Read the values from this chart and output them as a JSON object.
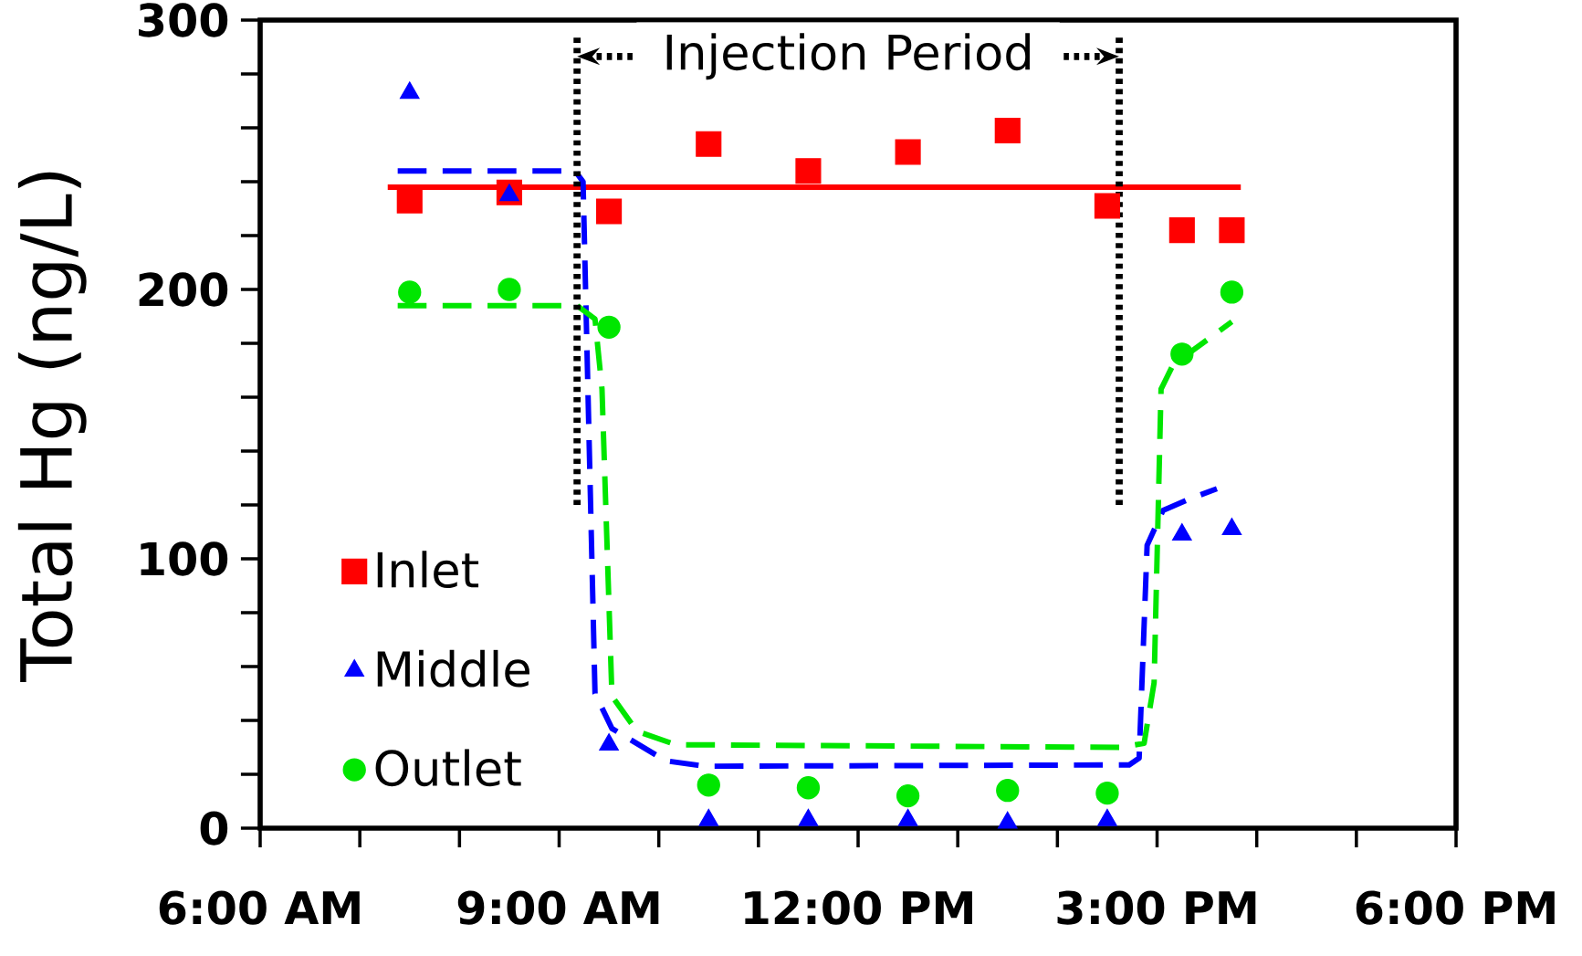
{
  "chart_data": {
    "type": "scatter",
    "ylabel": "Total Hg (ng/L)",
    "xlim": [
      6,
      18
    ],
    "ylim": [
      0,
      300
    ],
    "xticks": [
      {
        "value": 6,
        "label": "6:00 AM"
      },
      {
        "value": 9,
        "label": "9:00 AM"
      },
      {
        "value": 12,
        "label": "12:00 PM"
      },
      {
        "value": 15,
        "label": "3:00 PM"
      },
      {
        "value": 18,
        "label": "6:00 PM"
      }
    ],
    "yticks": [
      0,
      100,
      200,
      300
    ],
    "legend": "bottom left",
    "ref_lines": [
      {
        "axis": "x",
        "value": 9.18,
        "line_style": "dotted",
        "color": "#000000"
      },
      {
        "axis": "x",
        "value": 14.62,
        "line_style": "dotted",
        "color": "#000000"
      }
    ],
    "annotations": [
      "Injection Period"
    ],
    "series": [
      {
        "type": "line",
        "color": "#ff0000",
        "line_style": "solid",
        "marker": "none",
        "x": [
          7.28,
          15.84
        ],
        "values": [
          238,
          238
        ]
      },
      {
        "type": "line",
        "color": "#0000ff",
        "line_style": "dashed",
        "marker": "none",
        "x": [
          7.38,
          9.16,
          9.24,
          9.36,
          9.53,
          10.07,
          10.47,
          14.72,
          14.82,
          14.9,
          15.06,
          15.31,
          15.6
        ],
        "values": [
          244,
          244,
          240,
          50,
          37,
          25,
          23,
          23.5,
          26,
          105,
          118,
          122,
          126
        ]
      },
      {
        "type": "line",
        "color": "#00e600",
        "line_style": "dashed",
        "marker": "none",
        "x": [
          7.38,
          9.18,
          9.36,
          9.43,
          9.53,
          9.78,
          10.17,
          14.62,
          14.87,
          14.97,
          15.04,
          15.16,
          15.75
        ],
        "values": [
          194,
          194,
          189,
          163,
          49,
          36,
          31,
          30,
          31.5,
          54,
          163,
          172,
          188
        ]
      },
      {
        "name": "Inlet",
        "color": "#ff0000",
        "marker": "square",
        "x": [
          7.5,
          8.5,
          9.5,
          10.5,
          11.5,
          12.5,
          13.5,
          14.5,
          15.25,
          15.75
        ],
        "values": [
          233,
          236,
          229,
          254,
          244,
          251,
          259,
          231,
          222,
          222
        ]
      },
      {
        "name": "Middle",
        "color": "#0000ff",
        "marker": "triangle",
        "x": [
          7.5,
          8.5,
          9.5,
          10.5,
          11.5,
          12.5,
          13.5,
          14.5,
          15.25,
          15.75
        ],
        "values": [
          273,
          235,
          31,
          3,
          3,
          3,
          2,
          3,
          109,
          111
        ]
      },
      {
        "name": "Outlet",
        "color": "#00e600",
        "marker": "circle",
        "x": [
          7.5,
          8.5,
          9.5,
          10.5,
          11.5,
          12.5,
          13.5,
          14.5,
          15.25,
          15.75
        ],
        "values": [
          199,
          200,
          186,
          16,
          15,
          12,
          14,
          13,
          176,
          199
        ]
      }
    ]
  }
}
